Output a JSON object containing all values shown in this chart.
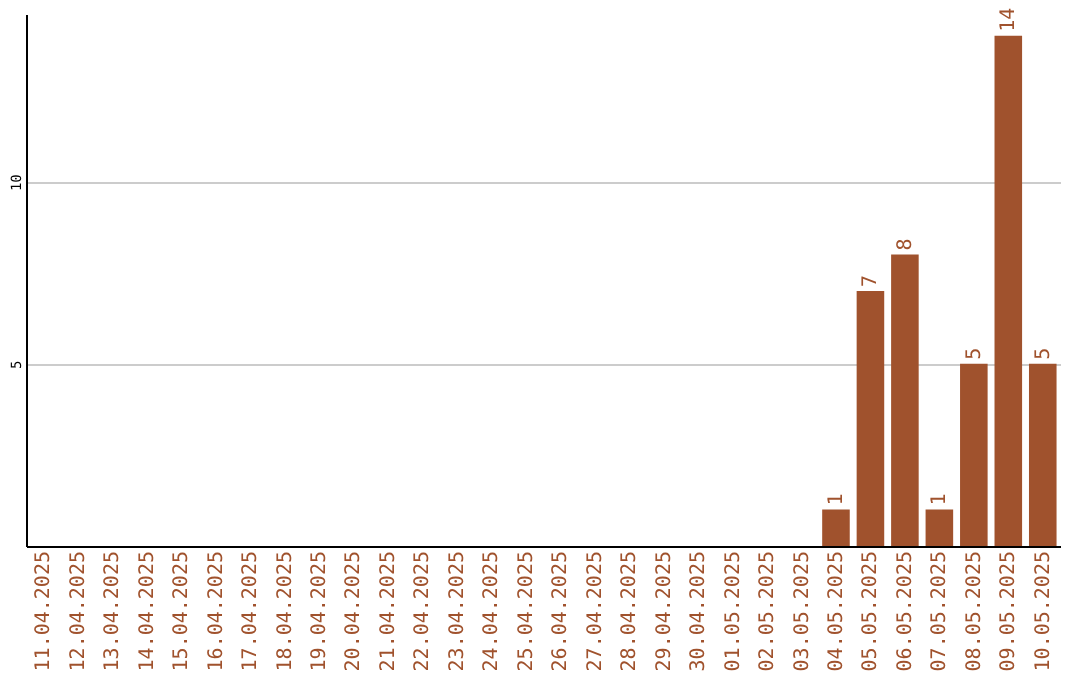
{
  "chart_data": {
    "type": "bar",
    "categories": [
      "11.04.2025",
      "12.04.2025",
      "13.04.2025",
      "14.04.2025",
      "15.04.2025",
      "16.04.2025",
      "17.04.2025",
      "18.04.2025",
      "19.04.2025",
      "20.04.2025",
      "21.04.2025",
      "22.04.2025",
      "23.04.2025",
      "24.04.2025",
      "25.04.2025",
      "26.04.2025",
      "27.04.2025",
      "28.04.2025",
      "29.04.2025",
      "30.04.2025",
      "01.05.2025",
      "02.05.2025",
      "03.05.2025",
      "04.05.2025",
      "05.05.2025",
      "06.05.2025",
      "07.05.2025",
      "08.05.2025",
      "09.05.2025",
      "10.05.2025"
    ],
    "values": [
      0,
      0,
      0,
      0,
      0,
      0,
      0,
      0,
      0,
      0,
      0,
      0,
      0,
      0,
      0,
      0,
      0,
      0,
      0,
      0,
      0,
      0,
      0,
      1,
      7,
      8,
      1,
      5,
      14,
      5
    ],
    "value_labels": [
      null,
      null,
      null,
      null,
      null,
      null,
      null,
      null,
      null,
      null,
      null,
      null,
      null,
      null,
      null,
      null,
      null,
      null,
      null,
      null,
      null,
      null,
      null,
      "1",
      "7",
      "8",
      "1",
      "5",
      "14",
      "5"
    ],
    "color": "#a0522d",
    "ylim": [
      0,
      14.6
    ],
    "yticks": [
      5,
      10
    ],
    "grid": "y"
  }
}
